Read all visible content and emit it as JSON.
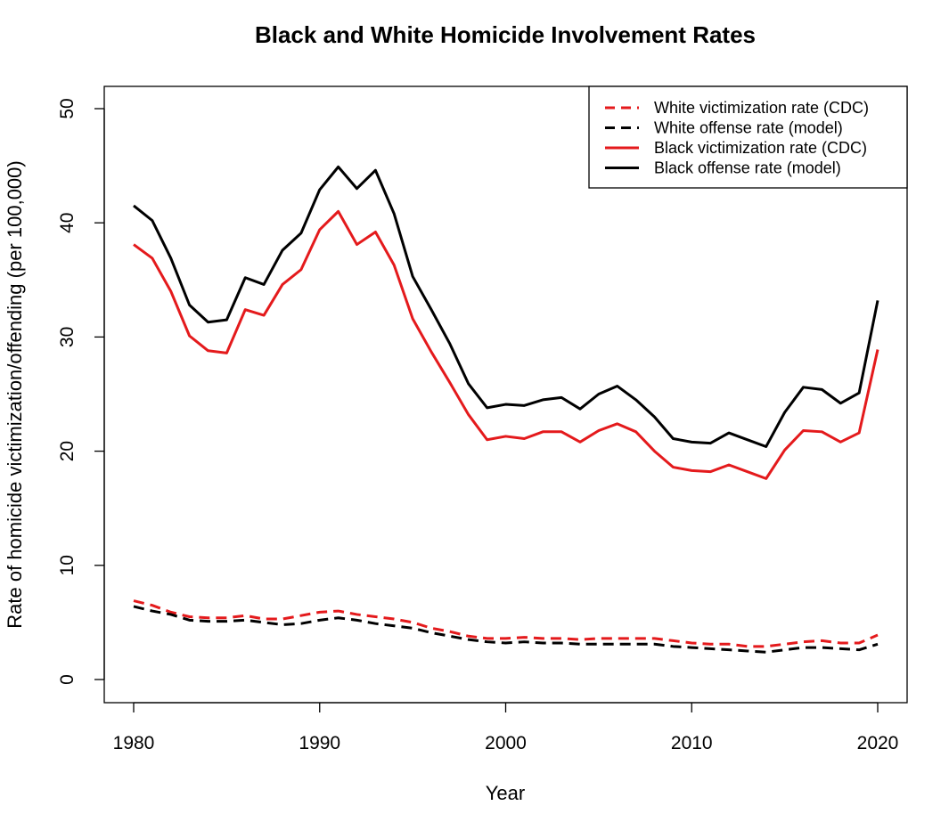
{
  "chart_data": {
    "type": "line",
    "title": "Black and White Homicide Involvement Rates",
    "xlabel": "Year",
    "ylabel": "Rate of homicide victimization/offending (per 100,000)",
    "xlim": [
      1980,
      2020
    ],
    "ylim": [
      0,
      50
    ],
    "grid": false,
    "legend_position": "top-right",
    "x_ticks": [
      "1980",
      "1990",
      "2000",
      "2010",
      "2020"
    ],
    "y_ticks": [
      "0",
      "10",
      "20",
      "30",
      "40",
      "50"
    ],
    "x": [
      1980,
      1981,
      1982,
      1983,
      1984,
      1985,
      1986,
      1987,
      1988,
      1989,
      1990,
      1991,
      1992,
      1993,
      1994,
      1995,
      1996,
      1997,
      1998,
      1999,
      2000,
      2001,
      2002,
      2003,
      2004,
      2005,
      2006,
      2007,
      2008,
      2009,
      2010,
      2011,
      2012,
      2013,
      2014,
      2015,
      2016,
      2017,
      2018,
      2019,
      2020
    ],
    "series": [
      {
        "name": "White victimization rate (CDC)",
        "color": "#e41a1c",
        "dash": "dashed",
        "values": [
          6.9,
          6.5,
          5.9,
          5.5,
          5.4,
          5.4,
          5.6,
          5.3,
          5.3,
          5.6,
          5.9,
          6.0,
          5.7,
          5.5,
          5.3,
          5.0,
          4.5,
          4.2,
          3.8,
          3.6,
          3.6,
          3.7,
          3.6,
          3.6,
          3.5,
          3.6,
          3.6,
          3.6,
          3.6,
          3.4,
          3.2,
          3.1,
          3.1,
          2.9,
          2.9,
          3.1,
          3.3,
          3.4,
          3.2,
          3.2,
          3.9
        ]
      },
      {
        "name": "White offense rate (model)",
        "color": "#000000",
        "dash": "dashed",
        "values": [
          6.4,
          6.0,
          5.7,
          5.2,
          5.1,
          5.1,
          5.2,
          5.0,
          4.8,
          4.9,
          5.2,
          5.4,
          5.2,
          4.9,
          4.7,
          4.5,
          4.1,
          3.8,
          3.5,
          3.3,
          3.2,
          3.3,
          3.2,
          3.2,
          3.1,
          3.1,
          3.1,
          3.1,
          3.1,
          2.9,
          2.8,
          2.7,
          2.6,
          2.5,
          2.4,
          2.6,
          2.8,
          2.8,
          2.7,
          2.6,
          3.1
        ]
      },
      {
        "name": "Black victimization rate (CDC)",
        "color": "#e41a1c",
        "dash": "solid",
        "values": [
          38.1,
          36.9,
          34.0,
          30.1,
          28.8,
          28.6,
          32.4,
          31.9,
          34.6,
          35.9,
          39.4,
          41.0,
          38.1,
          39.2,
          36.3,
          31.6,
          28.7,
          26.0,
          23.2,
          21.0,
          21.3,
          21.1,
          21.7,
          21.7,
          20.8,
          21.8,
          22.4,
          21.7,
          20.0,
          18.6,
          18.3,
          18.2,
          18.8,
          18.2,
          17.6,
          20.1,
          21.8,
          21.7,
          20.8,
          21.6,
          28.9
        ]
      },
      {
        "name": "Black offense rate (model)",
        "color": "#000000",
        "dash": "solid",
        "values": [
          41.5,
          40.2,
          36.9,
          32.8,
          31.3,
          31.5,
          35.2,
          34.6,
          37.6,
          39.1,
          42.9,
          44.9,
          43.0,
          44.6,
          40.8,
          35.3,
          32.4,
          29.4,
          25.9,
          23.8,
          24.1,
          24.0,
          24.5,
          24.7,
          23.7,
          25.0,
          25.7,
          24.5,
          23.0,
          21.1,
          20.8,
          20.7,
          21.6,
          21.0,
          20.4,
          23.4,
          25.6,
          25.4,
          24.2,
          25.1,
          33.2
        ]
      }
    ]
  }
}
